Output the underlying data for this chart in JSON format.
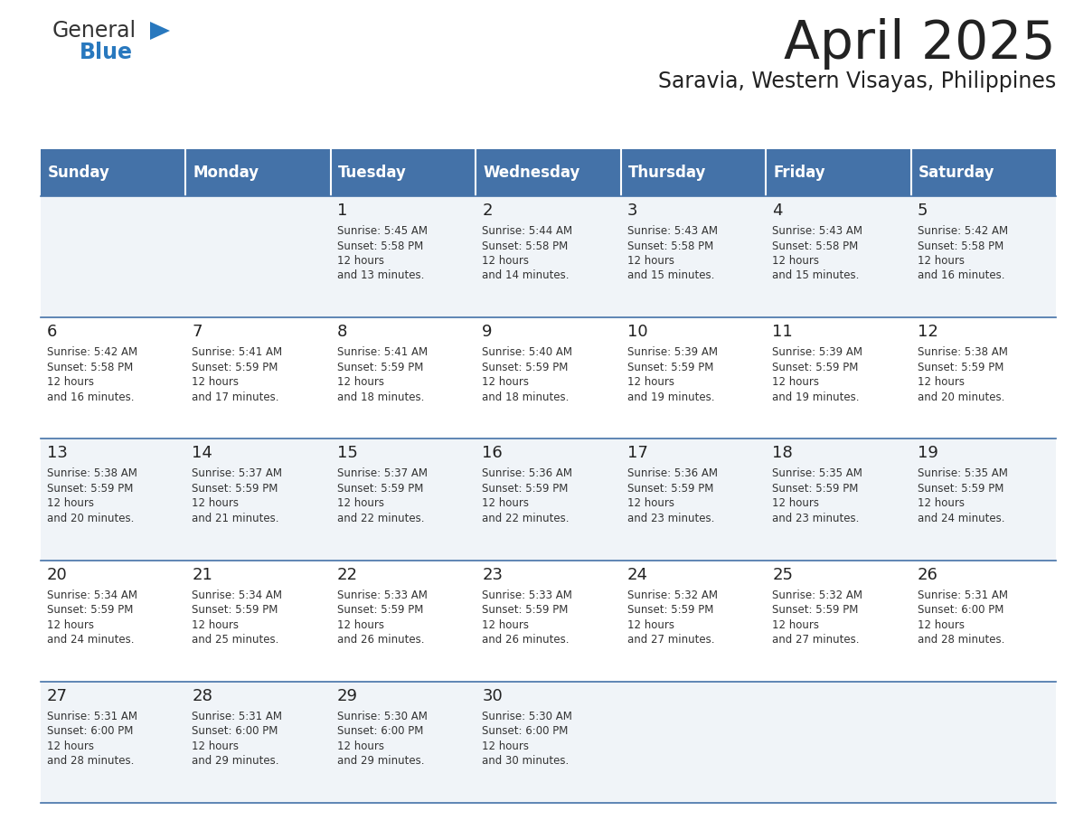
{
  "title": "April 2025",
  "subtitle": "Saravia, Western Visayas, Philippines",
  "header_bg": "#4472a8",
  "header_text_color": "#ffffff",
  "days_of_week": [
    "Sunday",
    "Monday",
    "Tuesday",
    "Wednesday",
    "Thursday",
    "Friday",
    "Saturday"
  ],
  "row_bg_odd": "#f0f4f8",
  "row_bg_even": "#ffffff",
  "cell_border_color": "#4472a8",
  "title_color": "#222222",
  "subtitle_color": "#222222",
  "day_number_color": "#222222",
  "cell_text_color": "#333333",
  "calendar": [
    [
      null,
      null,
      {
        "day": 1,
        "sunrise": "5:45 AM",
        "sunset": "5:58 PM",
        "daylight": "12 hours and 13 minutes."
      },
      {
        "day": 2,
        "sunrise": "5:44 AM",
        "sunset": "5:58 PM",
        "daylight": "12 hours and 14 minutes."
      },
      {
        "day": 3,
        "sunrise": "5:43 AM",
        "sunset": "5:58 PM",
        "daylight": "12 hours and 15 minutes."
      },
      {
        "day": 4,
        "sunrise": "5:43 AM",
        "sunset": "5:58 PM",
        "daylight": "12 hours and 15 minutes."
      },
      {
        "day": 5,
        "sunrise": "5:42 AM",
        "sunset": "5:58 PM",
        "daylight": "12 hours and 16 minutes."
      }
    ],
    [
      {
        "day": 6,
        "sunrise": "5:42 AM",
        "sunset": "5:58 PM",
        "daylight": "12 hours and 16 minutes."
      },
      {
        "day": 7,
        "sunrise": "5:41 AM",
        "sunset": "5:59 PM",
        "daylight": "12 hours and 17 minutes."
      },
      {
        "day": 8,
        "sunrise": "5:41 AM",
        "sunset": "5:59 PM",
        "daylight": "12 hours and 18 minutes."
      },
      {
        "day": 9,
        "sunrise": "5:40 AM",
        "sunset": "5:59 PM",
        "daylight": "12 hours and 18 minutes."
      },
      {
        "day": 10,
        "sunrise": "5:39 AM",
        "sunset": "5:59 PM",
        "daylight": "12 hours and 19 minutes."
      },
      {
        "day": 11,
        "sunrise": "5:39 AM",
        "sunset": "5:59 PM",
        "daylight": "12 hours and 19 minutes."
      },
      {
        "day": 12,
        "sunrise": "5:38 AM",
        "sunset": "5:59 PM",
        "daylight": "12 hours and 20 minutes."
      }
    ],
    [
      {
        "day": 13,
        "sunrise": "5:38 AM",
        "sunset": "5:59 PM",
        "daylight": "12 hours and 20 minutes."
      },
      {
        "day": 14,
        "sunrise": "5:37 AM",
        "sunset": "5:59 PM",
        "daylight": "12 hours and 21 minutes."
      },
      {
        "day": 15,
        "sunrise": "5:37 AM",
        "sunset": "5:59 PM",
        "daylight": "12 hours and 22 minutes."
      },
      {
        "day": 16,
        "sunrise": "5:36 AM",
        "sunset": "5:59 PM",
        "daylight": "12 hours and 22 minutes."
      },
      {
        "day": 17,
        "sunrise": "5:36 AM",
        "sunset": "5:59 PM",
        "daylight": "12 hours and 23 minutes."
      },
      {
        "day": 18,
        "sunrise": "5:35 AM",
        "sunset": "5:59 PM",
        "daylight": "12 hours and 23 minutes."
      },
      {
        "day": 19,
        "sunrise": "5:35 AM",
        "sunset": "5:59 PM",
        "daylight": "12 hours and 24 minutes."
      }
    ],
    [
      {
        "day": 20,
        "sunrise": "5:34 AM",
        "sunset": "5:59 PM",
        "daylight": "12 hours and 24 minutes."
      },
      {
        "day": 21,
        "sunrise": "5:34 AM",
        "sunset": "5:59 PM",
        "daylight": "12 hours and 25 minutes."
      },
      {
        "day": 22,
        "sunrise": "5:33 AM",
        "sunset": "5:59 PM",
        "daylight": "12 hours and 26 minutes."
      },
      {
        "day": 23,
        "sunrise": "5:33 AM",
        "sunset": "5:59 PM",
        "daylight": "12 hours and 26 minutes."
      },
      {
        "day": 24,
        "sunrise": "5:32 AM",
        "sunset": "5:59 PM",
        "daylight": "12 hours and 27 minutes."
      },
      {
        "day": 25,
        "sunrise": "5:32 AM",
        "sunset": "5:59 PM",
        "daylight": "12 hours and 27 minutes."
      },
      {
        "day": 26,
        "sunrise": "5:31 AM",
        "sunset": "6:00 PM",
        "daylight": "12 hours and 28 minutes."
      }
    ],
    [
      {
        "day": 27,
        "sunrise": "5:31 AM",
        "sunset": "6:00 PM",
        "daylight": "12 hours and 28 minutes."
      },
      {
        "day": 28,
        "sunrise": "5:31 AM",
        "sunset": "6:00 PM",
        "daylight": "12 hours and 29 minutes."
      },
      {
        "day": 29,
        "sunrise": "5:30 AM",
        "sunset": "6:00 PM",
        "daylight": "12 hours and 29 minutes."
      },
      {
        "day": 30,
        "sunrise": "5:30 AM",
        "sunset": "6:00 PM",
        "daylight": "12 hours and 30 minutes."
      },
      null,
      null,
      null
    ]
  ],
  "logo_general_color": "#333333",
  "logo_blue_color": "#2878be",
  "figsize": [
    11.88,
    9.18
  ],
  "dpi": 100
}
